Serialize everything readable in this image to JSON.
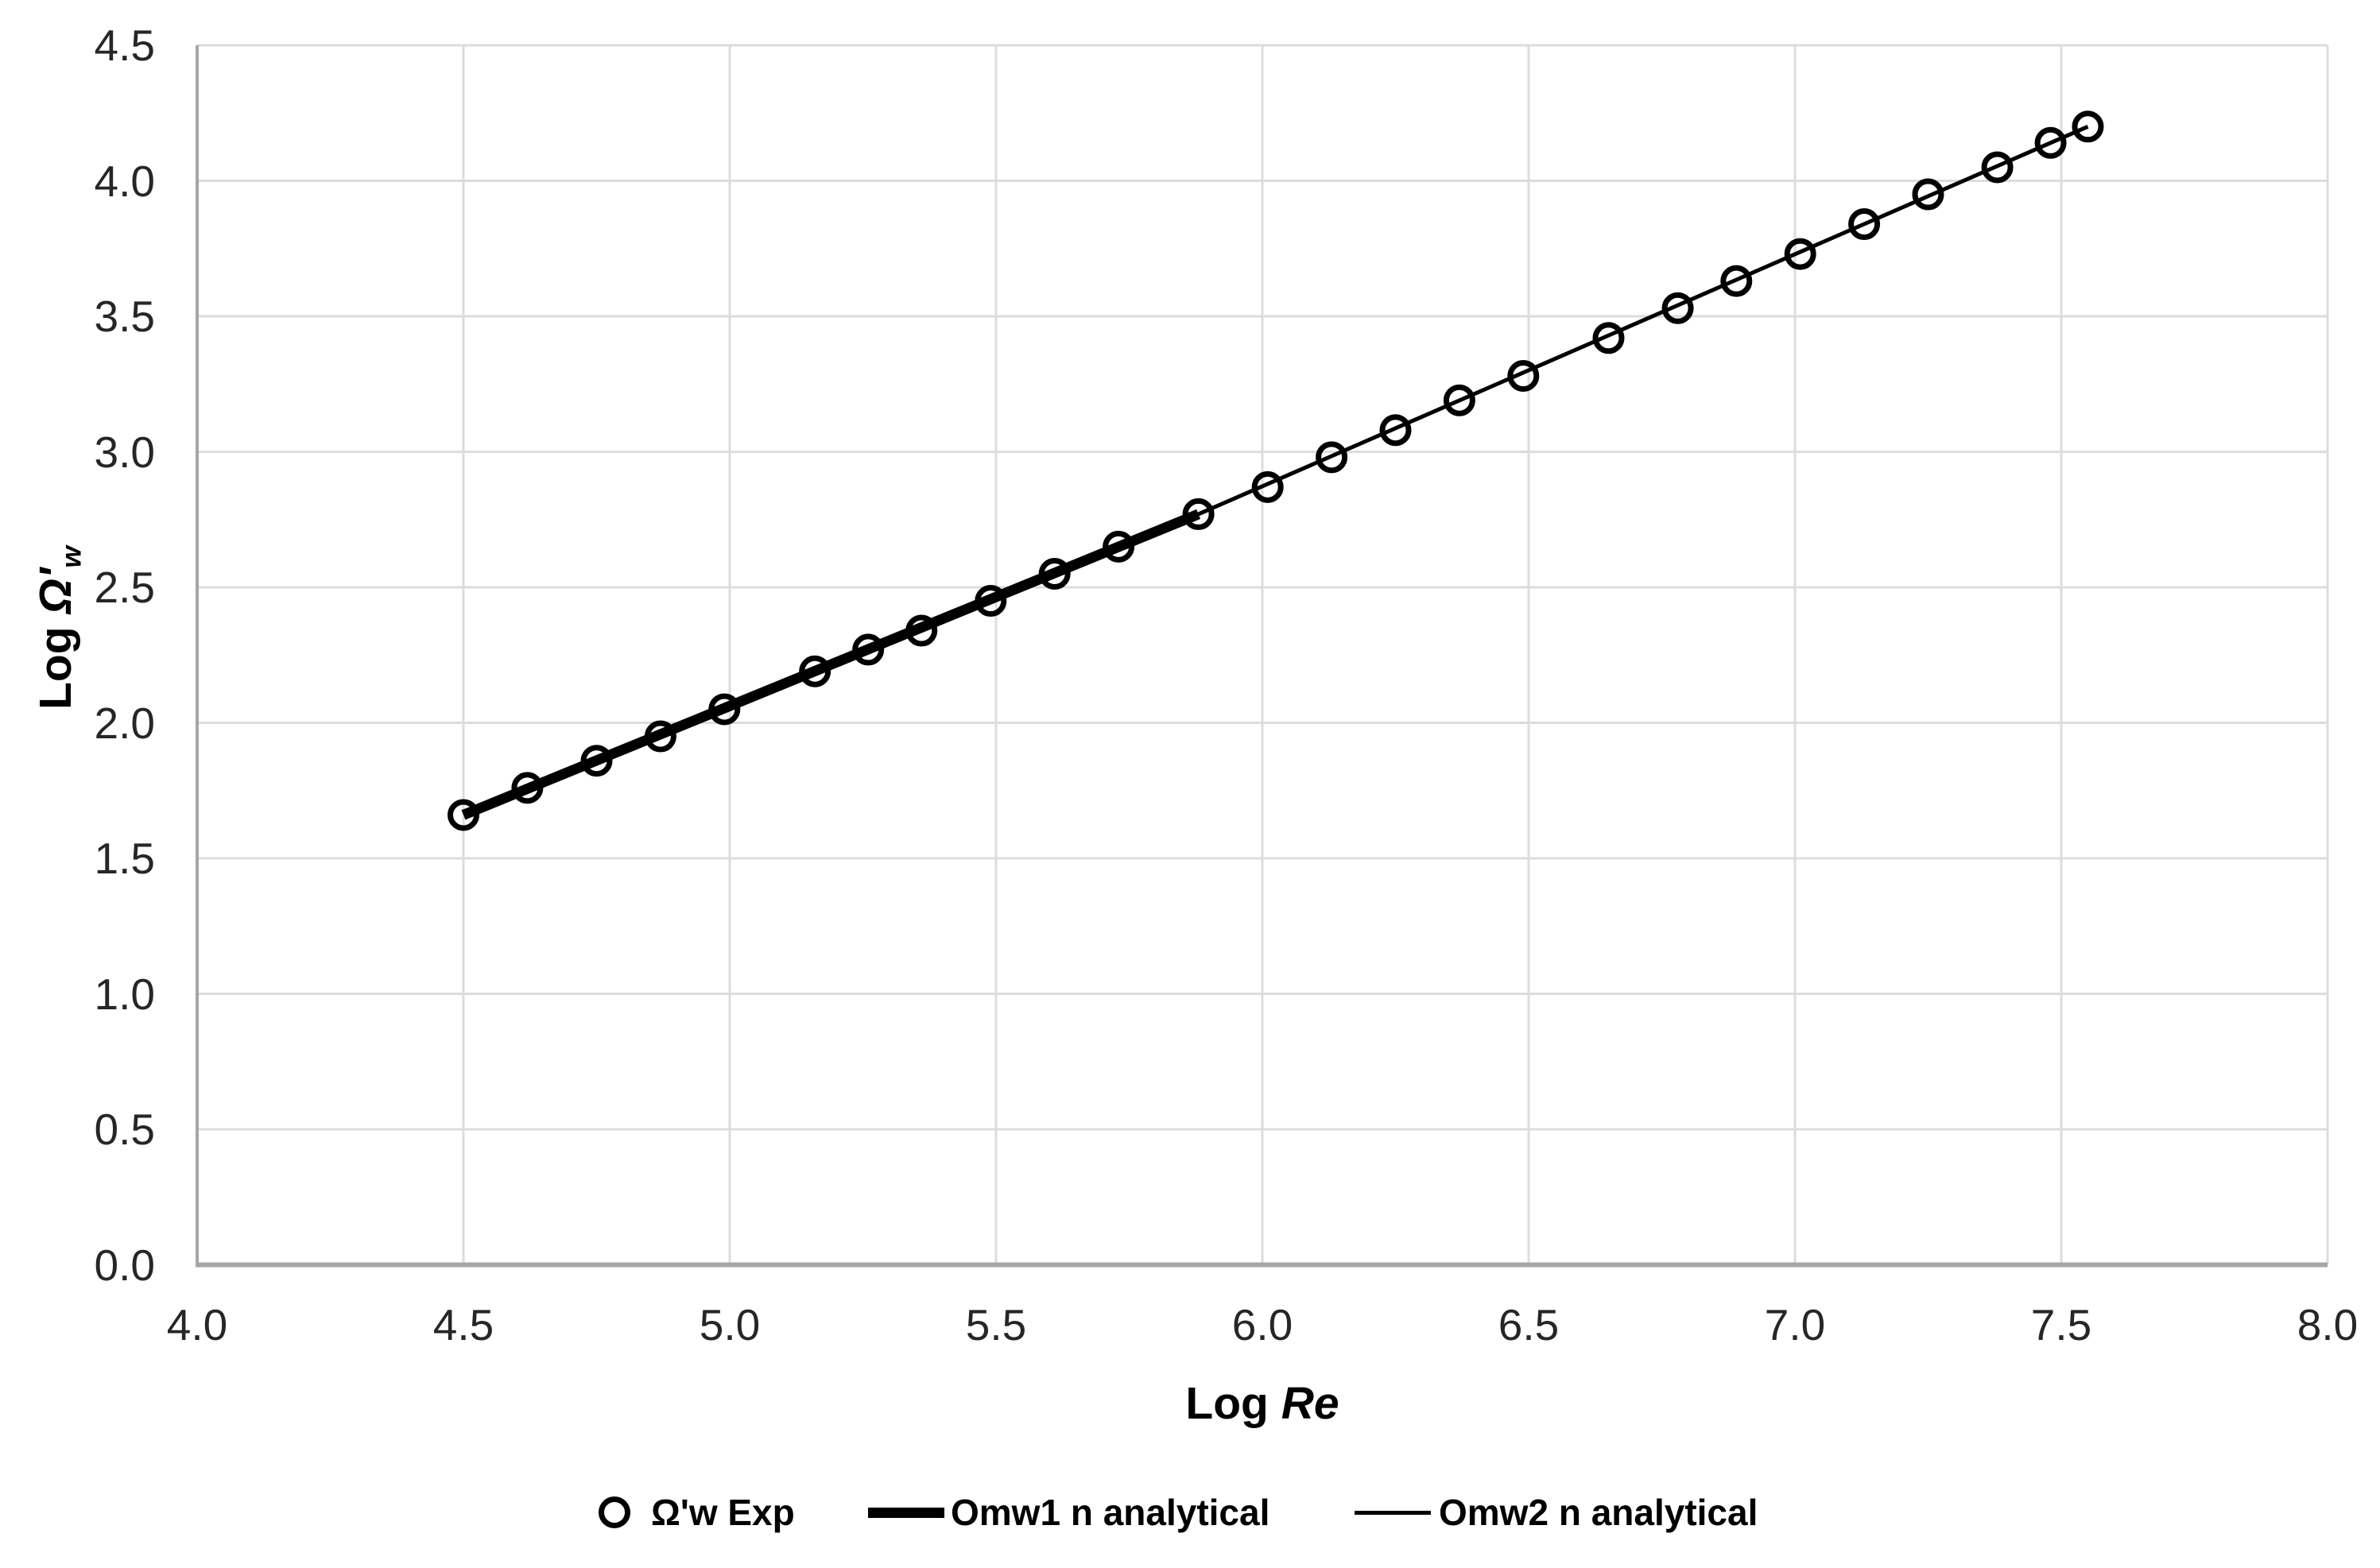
{
  "chart_data": {
    "type": "scatter",
    "xlabel": {
      "prefix": "Log ",
      "symbol": "Re"
    },
    "ylabel": {
      "prefix": "Log ",
      "symbol": "Ω'",
      "subscript": "w"
    },
    "xlim": [
      4.0,
      8.0
    ],
    "ylim": [
      0.0,
      4.5
    ],
    "x_ticks": [
      "4.0",
      "4.5",
      "5.0",
      "5.5",
      "6.0",
      "6.5",
      "7.0",
      "7.5",
      "8.0"
    ],
    "y_ticks": [
      "0.0",
      "0.5",
      "1.0",
      "1.5",
      "2.0",
      "2.5",
      "3.0",
      "3.5",
      "4.0",
      "4.5"
    ],
    "grid": true,
    "legend_position": "bottom-center",
    "series": [
      {
        "name": "Ω'w Exp",
        "type": "scatter",
        "marker": "open-circle",
        "color": "#000000",
        "points": [
          [
            4.5,
            1.66
          ],
          [
            4.62,
            1.76
          ],
          [
            4.75,
            1.86
          ],
          [
            4.87,
            1.95
          ],
          [
            4.99,
            2.05
          ],
          [
            5.16,
            2.19
          ],
          [
            5.26,
            2.27
          ],
          [
            5.36,
            2.34
          ],
          [
            5.49,
            2.45
          ],
          [
            5.61,
            2.55
          ],
          [
            5.73,
            2.65
          ],
          [
            5.88,
            2.77
          ],
          [
            6.01,
            2.87
          ],
          [
            6.13,
            2.98
          ],
          [
            6.25,
            3.08
          ],
          [
            6.37,
            3.19
          ],
          [
            6.49,
            3.28
          ],
          [
            6.65,
            3.42
          ],
          [
            6.78,
            3.53
          ],
          [
            6.89,
            3.63
          ],
          [
            7.01,
            3.73
          ],
          [
            7.13,
            3.84
          ],
          [
            7.25,
            3.95
          ],
          [
            7.38,
            4.05
          ],
          [
            7.48,
            4.14
          ],
          [
            7.55,
            4.2
          ]
        ]
      },
      {
        "name": "Omw1 n analytical",
        "type": "line",
        "stroke": "thick",
        "color": "#000000",
        "points": [
          [
            4.5,
            1.66
          ],
          [
            5.88,
            2.77
          ]
        ]
      },
      {
        "name": "Omw2 n analytical",
        "type": "line",
        "stroke": "thin",
        "color": "#000000",
        "points": [
          [
            5.88,
            2.77
          ],
          [
            7.55,
            4.2
          ]
        ]
      }
    ],
    "colors": {
      "series": "#000000",
      "grid": "#dcdcdc",
      "axis": "#a6a6a6",
      "tick_text": "#262626",
      "title_text": "#000000",
      "background": "#ffffff"
    }
  }
}
